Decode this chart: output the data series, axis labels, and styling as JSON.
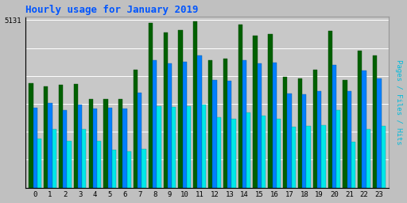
{
  "title": "Hourly usage for January 2019",
  "title_color": "#0055ff",
  "hours": [
    0,
    1,
    2,
    3,
    4,
    5,
    6,
    7,
    8,
    9,
    10,
    11,
    12,
    13,
    14,
    15,
    16,
    17,
    18,
    19,
    20,
    21,
    22,
    23
  ],
  "pages": [
    3200,
    3100,
    3150,
    3180,
    2700,
    2700,
    2720,
    3600,
    5050,
    4750,
    4820,
    5100,
    3900,
    3950,
    5000,
    4650,
    4700,
    3380,
    3350,
    3600,
    4800,
    3300,
    4200,
    4050
  ],
  "files": [
    2450,
    2600,
    2370,
    2540,
    2420,
    2440,
    2430,
    2900,
    3900,
    3800,
    3850,
    4050,
    3300,
    3280,
    3900,
    3800,
    3820,
    2880,
    2850,
    2950,
    3750,
    2950,
    3580,
    3350
  ],
  "hits": [
    1500,
    1780,
    1430,
    1790,
    1430,
    1150,
    1100,
    1170,
    2500,
    2470,
    2500,
    2550,
    2150,
    2100,
    2300,
    2200,
    2100,
    1850,
    1880,
    1900,
    2380,
    1410,
    1780,
    1890
  ],
  "pages_color": "#006000",
  "files_color": "#0080ff",
  "hits_color": "#00e8e8",
  "background_color": "#c0c0c0",
  "plot_bg_color": "#c8c8c8",
  "grid_color": "#b0b0b0",
  "ylabel_right": "Pages / Files / Hits",
  "ylabel_right_color": "#00bbdd",
  "ymax": 5131,
  "ytick_label": "5131",
  "bar_width": 0.28
}
